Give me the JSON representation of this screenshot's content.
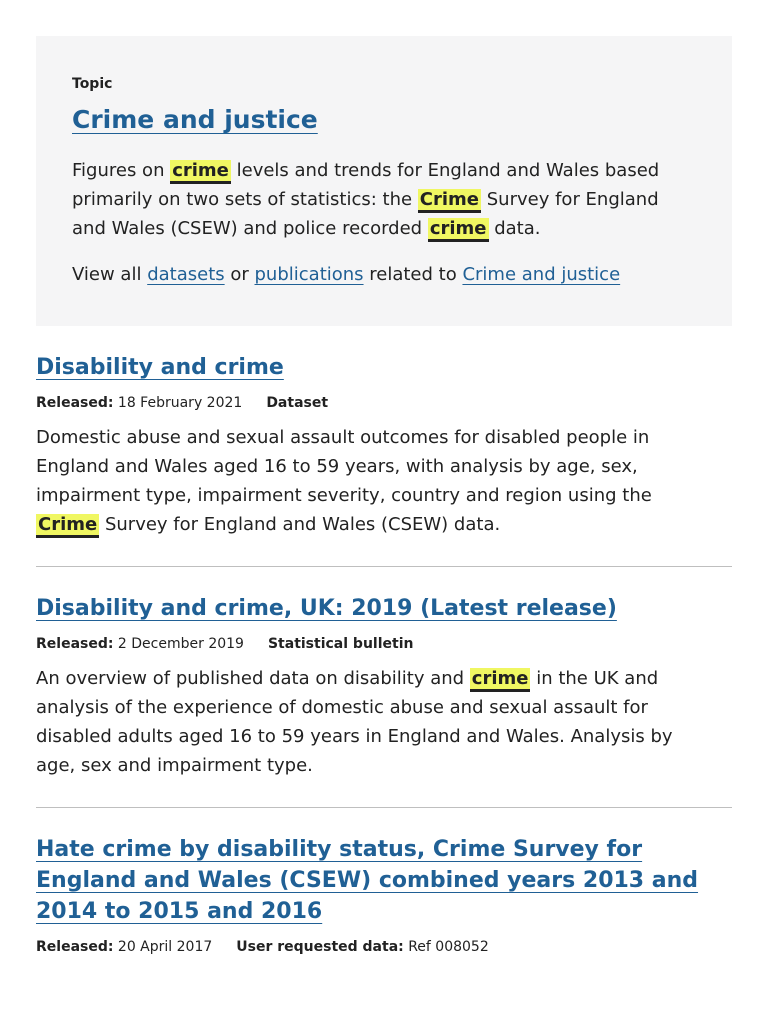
{
  "topic": {
    "kicker": "Topic",
    "title": "Crime and justice",
    "description": {
      "p1": "Figures on ",
      "hl1": "crime",
      "p2": " levels and trends for England and Wales based primarily on two sets of statistics: the ",
      "hl2": "Crime",
      "p3": " Survey for England and Wales (CSEW) and police recorded ",
      "hl3": "crime",
      "p4": " data."
    },
    "links": {
      "view_all": "View all ",
      "datasets": "datasets",
      "or": " or ",
      "publications": "publications",
      "related_to": " related to ",
      "topic_link": "Crime and justice"
    }
  },
  "results": [
    {
      "title": "Disability and crime",
      "released_label": "Released:",
      "released_date": "18 February 2021",
      "type": "Dataset",
      "summary": {
        "p1": "Domestic abuse and sexual assault outcomes for disabled people in England and Wales aged 16 to 59 years, with analysis by age, sex, impairment type, impairment severity, country and region using the ",
        "hl1": "Crime",
        "p2": " Survey for England and Wales (CSEW) data."
      }
    },
    {
      "title": "Disability and crime, UK: 2019 (Latest release)",
      "released_label": "Released:",
      "released_date": "2 December 2019",
      "type": "Statistical bulletin",
      "summary": {
        "p1": "An overview of published data on disability and ",
        "hl1": "crime",
        "p2": " in the UK and analysis of the experience of domestic abuse and sexual assault for disabled adults aged 16 to 59 years in England and Wales. Analysis by age, sex and impairment type."
      }
    },
    {
      "title": "Hate crime by disability status, Crime Survey for England and Wales (CSEW) combined years 2013 and 2014 to 2015 and 2016",
      "released_label": "Released:",
      "released_date": "20 April 2017",
      "type_label": "User requested data:",
      "type_value": "Ref 008052"
    }
  ],
  "colors": {
    "link": "#206095",
    "highlight": "#f0f762",
    "card_bg": "#f5f5f6"
  }
}
